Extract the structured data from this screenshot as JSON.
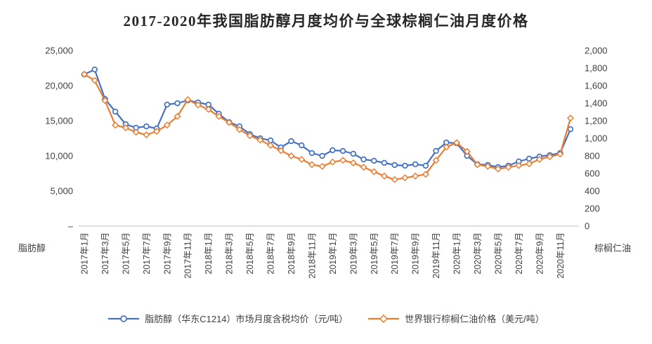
{
  "title": "2017-2020年我国脂肪醇月度均价与全球棕榈仁油月度价格",
  "axes": {
    "left_ticks": [
      "25,000",
      "20,000",
      "15,000",
      "10,000",
      "5,000",
      "–"
    ],
    "right_ticks": [
      "2,000",
      "1,800",
      "1,600",
      "1,400",
      "1,200",
      "1,000",
      "800",
      "600",
      "400",
      "200",
      "0"
    ],
    "x_ticks": [
      "2017年1月",
      "2017年3月",
      "2017年5月",
      "2017年7月",
      "2017年9月",
      "2017年11月",
      "2018年1月",
      "2018年3月",
      "2018年5月",
      "2018年7月",
      "2018年9月",
      "2018年11月",
      "2019年1月",
      "2019年3月",
      "2019年5月",
      "2019年7月",
      "2019年9月",
      "2019年11月",
      "2020年1月",
      "2020年3月",
      "2020年5月",
      "2020年7月",
      "2020年9月",
      "2020年11月"
    ],
    "left_axis_label": "脂肪醇",
    "right_axis_label": "棕榈仁油",
    "axis_line_color": "#BFBFBF",
    "tick_text_color": "#404040"
  },
  "legend": [
    {
      "label": "脂肪醇（华东C1214）市场月度含税均价（元/吨）",
      "color": "#4472C4",
      "marker": "circle"
    },
    {
      "label": "世界银行棕榈仁油价格（美元/吨）",
      "color": "#ED7D31",
      "marker": "diamond"
    }
  ],
  "chart_data": {
    "type": "line",
    "title": "2017-2020年我国脂肪醇月度均价与全球棕榈仁油月度价格",
    "grid": false,
    "legend_position": "bottom",
    "y_left": {
      "min": 0,
      "max": 25000,
      "step": 5000,
      "axis_label": "脂肪醇",
      "unit": "元/吨"
    },
    "y_right": {
      "min": 0,
      "max": 2000,
      "step": 200,
      "axis_label": "棕榈仁油",
      "unit": "美元/吨"
    },
    "x": [
      "2017年1月",
      "2017年2月",
      "2017年3月",
      "2017年4月",
      "2017年5月",
      "2017年6月",
      "2017年7月",
      "2017年8月",
      "2017年9月",
      "2017年10月",
      "2017年11月",
      "2017年12月",
      "2018年1月",
      "2018年2月",
      "2018年3月",
      "2018年4月",
      "2018年5月",
      "2018年6月",
      "2018年7月",
      "2018年8月",
      "2018年9月",
      "2018年10月",
      "2018年11月",
      "2018年12月",
      "2019年1月",
      "2019年2月",
      "2019年3月",
      "2019年4月",
      "2019年5月",
      "2019年6月",
      "2019年7月",
      "2019年8月",
      "2019年9月",
      "2019年10月",
      "2019年11月",
      "2019年12月",
      "2020年1月",
      "2020年2月",
      "2020年3月",
      "2020年4月",
      "2020年5月",
      "2020年6月",
      "2020年7月",
      "2020年8月",
      "2020年9月",
      "2020年10月",
      "2020年11月",
      "2020年12月"
    ],
    "series": [
      {
        "name": "脂肪醇（华东C1214）市场月度含税均价（元/吨）",
        "axis": "left",
        "color": "#4472C4",
        "marker": "circle",
        "values": [
          21600,
          22300,
          18100,
          16300,
          14500,
          14000,
          14200,
          13900,
          17300,
          17500,
          17900,
          17600,
          17300,
          16000,
          14800,
          14200,
          13100,
          12500,
          12200,
          11200,
          12100,
          11500,
          10400,
          10000,
          10800,
          10700,
          10300,
          9500,
          9300,
          9000,
          8700,
          8600,
          8800,
          8600,
          10700,
          11900,
          11800,
          10000,
          8800,
          8700,
          8400,
          8600,
          9200,
          9600,
          9900,
          10100,
          10400,
          13800
        ]
      },
      {
        "name": "世界银行棕榈仁油价格（美元/吨）",
        "axis": "right",
        "color": "#ED7D31",
        "marker": "diamond",
        "values": [
          1730,
          1660,
          1430,
          1150,
          1120,
          1070,
          1040,
          1080,
          1150,
          1250,
          1440,
          1380,
          1330,
          1250,
          1180,
          1100,
          1030,
          980,
          920,
          860,
          800,
          760,
          700,
          680,
          730,
          750,
          720,
          670,
          620,
          570,
          530,
          550,
          570,
          590,
          750,
          900,
          950,
          850,
          700,
          680,
          650,
          670,
          690,
          710,
          760,
          790,
          820,
          1230
        ]
      }
    ]
  }
}
